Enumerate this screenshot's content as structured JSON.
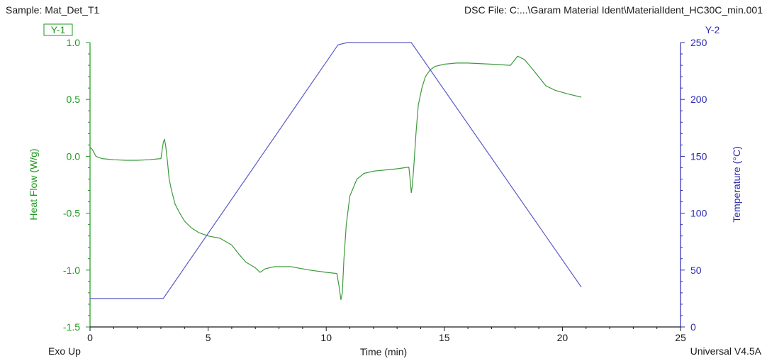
{
  "header": {
    "sample": "Sample: Mat_Det_T1",
    "dsc_file": "DSC File: C:...\\Garam Material Ident\\MaterialIdent_HC30C_min.001"
  },
  "footer": {
    "exo": "Exo Up",
    "version": "Universal V4.5A"
  },
  "colors": {
    "heat_flow": "#3c9a3c",
    "temperature": "#5a5ac8",
    "axis_left": "#1e9a1e",
    "axis_right": "#2b2bb0",
    "axis_x": "#1a1a1a"
  },
  "chart_data": {
    "type": "line",
    "xlabel": "Time (min)",
    "y1label": "Heat Flow (W/g)",
    "y2label": "Temperature (°C)",
    "y1_tag": "Y-1",
    "y2_tag": "Y-2",
    "xlim": [
      0,
      25
    ],
    "y1lim": [
      -1.5,
      1.0
    ],
    "y2lim": [
      0,
      250
    ],
    "xticks": [
      "0",
      "5",
      "10",
      "15",
      "20",
      "25"
    ],
    "y1ticks": [
      "1.0",
      "0.5",
      "0.0",
      "-0.5",
      "-1.0",
      "-1.5"
    ],
    "y2ticks": [
      "250",
      "200",
      "150",
      "100",
      "50",
      "0"
    ],
    "grid": false,
    "series": [
      {
        "name": "Heat Flow (W/g)",
        "axis": "y1",
        "x": [
          0,
          0.1,
          0.25,
          0.5,
          1,
          1.5,
          2,
          2.5,
          3.0,
          3.05,
          3.1,
          3.15,
          3.2,
          3.28,
          3.35,
          3.45,
          3.6,
          3.8,
          4.0,
          4.3,
          4.6,
          5.0,
          5.5,
          6.0,
          6.3,
          6.6,
          7.0,
          7.2,
          7.4,
          7.8,
          8.5,
          9.3,
          10.0,
          10.45,
          10.55,
          10.62,
          10.68,
          10.75,
          10.85,
          11.0,
          11.3,
          11.6,
          12.0,
          12.5,
          13.0,
          13.5,
          13.55,
          13.6,
          13.65,
          13.72,
          13.8,
          13.9,
          14.05,
          14.2,
          14.4,
          14.6,
          15.0,
          15.5,
          16.0,
          17.0,
          17.8,
          17.95,
          18.1,
          18.4,
          18.8,
          19.3,
          19.7,
          20.2,
          20.8
        ],
        "values": [
          0.08,
          0.06,
          0.0,
          -0.02,
          -0.03,
          -0.035,
          -0.035,
          -0.03,
          -0.02,
          0.05,
          0.12,
          0.15,
          0.1,
          -0.05,
          -0.2,
          -0.3,
          -0.42,
          -0.5,
          -0.57,
          -0.63,
          -0.67,
          -0.7,
          -0.72,
          -0.78,
          -0.86,
          -0.93,
          -0.98,
          -1.02,
          -0.99,
          -0.97,
          -0.97,
          -1.0,
          -1.02,
          -1.03,
          -1.15,
          -1.26,
          -1.2,
          -0.9,
          -0.6,
          -0.35,
          -0.2,
          -0.15,
          -0.13,
          -0.12,
          -0.11,
          -0.095,
          -0.2,
          -0.32,
          -0.25,
          -0.05,
          0.2,
          0.45,
          0.6,
          0.7,
          0.76,
          0.79,
          0.81,
          0.82,
          0.82,
          0.81,
          0.8,
          0.84,
          0.88,
          0.85,
          0.75,
          0.62,
          0.58,
          0.55,
          0.52
        ]
      },
      {
        "name": "Temperature (°C)",
        "axis": "y2",
        "x": [
          0,
          3.1,
          10.5,
          10.9,
          13.6,
          20.8
        ],
        "values": [
          25,
          25,
          248,
          250,
          250,
          35
        ]
      }
    ]
  }
}
